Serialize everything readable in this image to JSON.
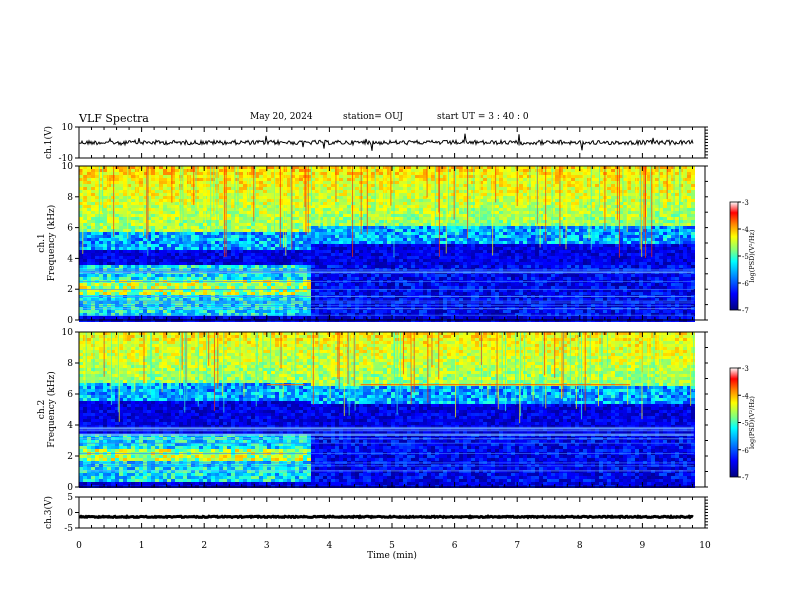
{
  "header": {
    "title": "VLF Spectra",
    "date": "May 20, 2024",
    "station": "station= OUJ",
    "start": "start  UT  =   3  : 40 : 0"
  },
  "chart_data": [
    {
      "type": "line",
      "panel": "ch1-waveform",
      "ylabel": "ch.1(V)",
      "ylim": [
        -10,
        10
      ],
      "y_ticks": [
        "10",
        "-10"
      ],
      "xlim": [
        0,
        10
      ],
      "baseline": 0,
      "color": "#000000"
    },
    {
      "type": "heatmap",
      "panel": "ch1-spectrogram",
      "ylabel": "ch.1\nFrequency (kHz)",
      "ylabel_lines": [
        "ch.1",
        "Frequency  (kHz)"
      ],
      "ylim": [
        0,
        10
      ],
      "y_ticks": [
        "0",
        "2",
        "4",
        "6",
        "8",
        "10"
      ],
      "xlim": [
        0,
        10
      ],
      "data_extent_min": 9.82,
      "colorbar": {
        "label": "log(PSD)(V²/Hz)",
        "range": [
          -7,
          -3
        ],
        "ticks": [
          "-3",
          "-4",
          "-5",
          "-6",
          "-7"
        ]
      },
      "segments": [
        {
          "t0": 0,
          "t1": 3.65,
          "low_band_kHz": [
            0.4,
            3.6
          ],
          "noise_top_kHz": 5.2
        },
        {
          "t0": 3.65,
          "t1": 9.82,
          "low_band_kHz": [
            0.4,
            3.6
          ],
          "noise_top_kHz": 5.6
        }
      ]
    },
    {
      "type": "heatmap",
      "panel": "ch2-spectrogram",
      "ylabel": "ch.2\nFrequency (kHz)",
      "ylabel_lines": [
        "ch.2",
        "Frequency  (kHz)"
      ],
      "ylim": [
        0,
        10
      ],
      "y_ticks": [
        "0",
        "2",
        "4",
        "6",
        "8",
        "10"
      ],
      "xlim": [
        0,
        10
      ],
      "data_extent_min": 9.82,
      "colorbar": {
        "label": "log(PSD)(V²/Hz)",
        "range": [
          -7,
          -3
        ],
        "ticks": [
          "-3",
          "-4",
          "-5",
          "-6",
          "-7"
        ]
      },
      "lines_kHz": [
        6.6
      ],
      "segments": [
        {
          "t0": 0,
          "t1": 3.65,
          "low_band_kHz": [
            0.4,
            3.6
          ],
          "noise_top_kHz": 6.2
        },
        {
          "t0": 3.65,
          "t1": 9.82,
          "low_band_kHz": [
            0.4,
            3.6
          ],
          "noise_top_kHz": 6.0
        }
      ]
    },
    {
      "type": "line",
      "panel": "ch3-waveform",
      "ylabel": "ch.3(V)",
      "ylim": [
        -5,
        5
      ],
      "y_ticks": [
        "5",
        "0",
        "-5"
      ],
      "xlim": [
        0,
        10
      ],
      "baseline": -1.4,
      "color": "#000000"
    }
  ],
  "x_axis": {
    "label": "Time  (min)",
    "ticks": [
      "0",
      "1",
      "2",
      "3",
      "4",
      "5",
      "6",
      "7",
      "8",
      "9",
      "10"
    ]
  },
  "colors": {
    "scale": [
      "#00007f",
      "#0000ff",
      "#007fff",
      "#00ffff",
      "#7fff7f",
      "#ffff00",
      "#ff7f00",
      "#ff0000",
      "#7f0000"
    ]
  }
}
